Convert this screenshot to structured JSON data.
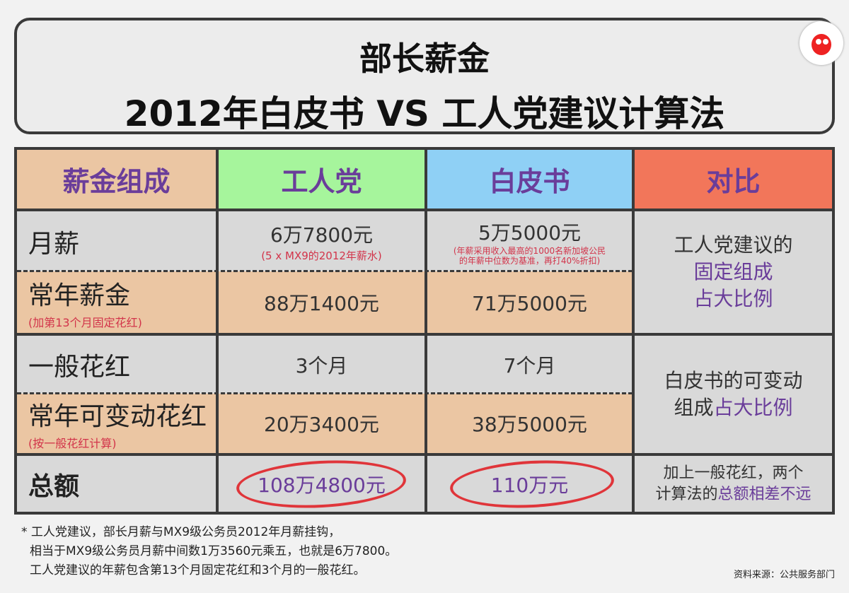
{
  "title": {
    "line1": "部长薪金",
    "line2": "2012年白皮书 VS 工人党建议计算法"
  },
  "headers": [
    "薪金组成",
    "工人党",
    "白皮书",
    "对比"
  ],
  "header_colors": [
    "#ebc6a3",
    "#a6f59c",
    "#8fd0f5",
    "#f2765a"
  ],
  "rows": [
    {
      "label": "月薪",
      "sub": "",
      "wp": "6万7800元",
      "wp_note": "(5 x MX9的2012年薪水)",
      "wb": "5万5000元",
      "wb_note": "(年薪采用收入最高的1000名新加坡公民的年薪中位数为基准，再打40%折扣)"
    },
    {
      "label": "常年薪金",
      "sub": "(加第13个月固定花红)",
      "wp": "88万1400元",
      "wb": "71万5000元"
    },
    {
      "label": "一般花红",
      "sub": "",
      "wp": "3个月",
      "wb": "7个月"
    },
    {
      "label": "常年可变动花红",
      "sub": "(按一般花红计算)",
      "wp": "20万3400元",
      "wb": "38万5000元"
    },
    {
      "label": "总额",
      "sub": "",
      "wp": "108万4800元",
      "wb": "110万元"
    }
  ],
  "compare": {
    "c1a": "工人党建议的",
    "c1b": "固定组成",
    "c1c": "占大比例",
    "c2a": "白皮书的可变动",
    "c2b": "组成",
    "c2c": "占大比例",
    "c3a": "加上一般花红，两个",
    "c3b": "计算法的",
    "c3c": "总额相差不远"
  },
  "footnote": [
    "* 工人党建议，部长月薪与MX9级公务员2012年月薪挂钩，",
    "相当于MX9级公务员月薪中间数1万3560元乘五，也就是6万7800。",
    "工人党建议的年薪包含第13个月固定花红和3个月的一般花红。"
  ],
  "source": "资料来源：公共服务部门"
}
